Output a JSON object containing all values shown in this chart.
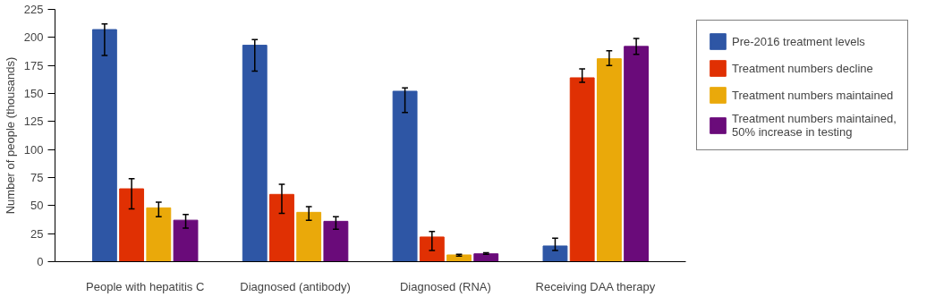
{
  "chart_data": {
    "type": "bar",
    "ylabel": "Number of people (thousands)",
    "categories": [
      "People with hepatitis C",
      "Diagnosed (antibody)",
      "Diagnosed (RNA)",
      "Receiving DAA therapy"
    ],
    "series": [
      {
        "name": "Pre-2016 treatment levels",
        "color": "#2e56a5",
        "values": [
          207,
          193,
          152,
          14
        ],
        "errors": [
          [
            184,
            212
          ],
          [
            170,
            198
          ],
          [
            133,
            155
          ],
          [
            10,
            21
          ]
        ]
      },
      {
        "name": "Treatment numbers decline",
        "color": "#e03003",
        "values": [
          65,
          60,
          22,
          164
        ],
        "errors": [
          [
            47,
            74
          ],
          [
            43,
            69
          ],
          [
            10,
            27
          ],
          [
            160,
            172
          ]
        ]
      },
      {
        "name": "Treatment numbers maintained",
        "color": "#eaa90a",
        "values": [
          48,
          44,
          6,
          181
        ],
        "errors": [
          [
            40,
            53
          ],
          [
            37,
            49
          ],
          [
            5,
            6.5
          ],
          [
            175,
            188
          ]
        ]
      },
      {
        "name": "Treatment numbers maintained, 50% increase in testing",
        "color": "#6a0b7a",
        "values": [
          37,
          36,
          7,
          192
        ],
        "errors": [
          [
            30,
            42
          ],
          [
            29,
            40
          ],
          [
            6.5,
            8
          ],
          [
            185,
            199
          ]
        ]
      }
    ],
    "ylim": [
      0,
      225
    ],
    "yticks": [
      0,
      25,
      50,
      75,
      100,
      125,
      150,
      175,
      200,
      225
    ],
    "grid": false,
    "legend": "right"
  }
}
